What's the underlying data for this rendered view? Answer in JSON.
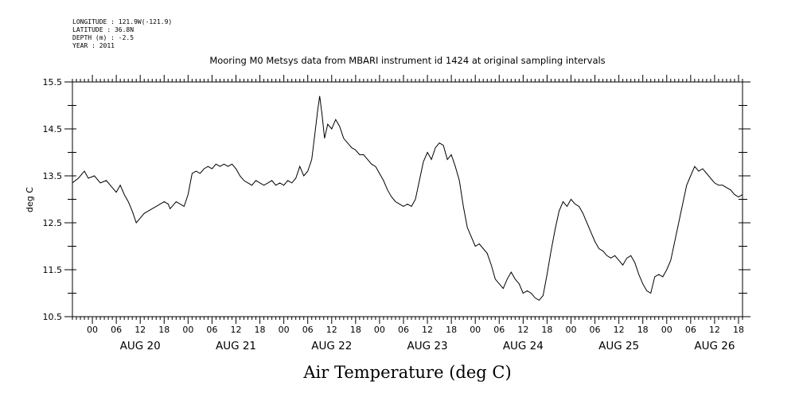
{
  "header": {
    "meta_lines": [
      "LONGITUDE : 121.9W(-121.9)",
      "LATITUDE : 36.8N",
      "DEPTH (m) : -2.5",
      "YEAR : 2011"
    ],
    "title": "Mooring M0 Metsys data from MBARI instrument id 1424 at original sampling intervals"
  },
  "chart_data": {
    "type": "line",
    "title": "Mooring M0 Metsys data from MBARI instrument id 1424 at original sampling intervals",
    "xlabel": "Air Temperature (deg C)",
    "ylabel": "deg C",
    "x_unit": "hours since AUG 20 00:00 (2011)",
    "xlim": [
      -5,
      163
    ],
    "ylim": [
      10.5,
      15.5
    ],
    "y_ticks": [
      "15.5",
      "14.5",
      "13.5",
      "12.5",
      "11.5",
      "10.5"
    ],
    "x_hour_labels": [
      "00",
      "06",
      "12",
      "18"
    ],
    "x_day_labels": [
      "AUG 20",
      "AUG 21",
      "AUG 22",
      "AUG 23",
      "AUG 24",
      "AUG 25",
      "AUG 26"
    ],
    "grid": false,
    "series": [
      {
        "name": "",
        "points": [
          [
            -5,
            13.35
          ],
          [
            -3.5,
            13.45
          ],
          [
            -2,
            13.6
          ],
          [
            -1,
            13.45
          ],
          [
            0.5,
            13.5
          ],
          [
            2,
            13.35
          ],
          [
            3.5,
            13.4
          ],
          [
            5,
            13.25
          ],
          [
            6,
            13.15
          ],
          [
            7,
            13.3
          ],
          [
            8,
            13.1
          ],
          [
            9,
            12.95
          ],
          [
            10,
            12.75
          ],
          [
            11,
            12.5
          ],
          [
            12,
            12.6
          ],
          [
            13,
            12.7
          ],
          [
            14,
            12.75
          ],
          [
            15,
            12.8
          ],
          [
            16,
            12.85
          ],
          [
            17,
            12.9
          ],
          [
            18,
            12.95
          ],
          [
            19,
            12.9
          ],
          [
            19.5,
            12.8
          ],
          [
            20,
            12.85
          ],
          [
            21,
            12.95
          ],
          [
            22,
            12.9
          ],
          [
            23,
            12.85
          ],
          [
            24,
            13.1
          ],
          [
            25,
            13.55
          ],
          [
            26,
            13.6
          ],
          [
            27,
            13.55
          ],
          [
            28,
            13.65
          ],
          [
            29,
            13.7
          ],
          [
            30,
            13.65
          ],
          [
            31,
            13.75
          ],
          [
            32,
            13.7
          ],
          [
            33,
            13.75
          ],
          [
            34,
            13.7
          ],
          [
            35,
            13.75
          ],
          [
            36,
            13.65
          ],
          [
            37,
            13.5
          ],
          [
            38,
            13.4
          ],
          [
            39,
            13.35
          ],
          [
            40,
            13.3
          ],
          [
            41,
            13.4
          ],
          [
            42,
            13.35
          ],
          [
            43,
            13.3
          ],
          [
            44,
            13.35
          ],
          [
            45,
            13.4
          ],
          [
            46,
            13.3
          ],
          [
            47,
            13.35
          ],
          [
            48,
            13.3
          ],
          [
            49,
            13.4
          ],
          [
            50,
            13.35
          ],
          [
            51,
            13.45
          ],
          [
            52,
            13.7
          ],
          [
            53,
            13.5
          ],
          [
            54,
            13.6
          ],
          [
            55,
            13.85
          ],
          [
            55.8,
            14.4
          ],
          [
            56.5,
            14.9
          ],
          [
            57,
            15.2
          ],
          [
            57.6,
            14.8
          ],
          [
            58.2,
            14.3
          ],
          [
            59,
            14.6
          ],
          [
            60,
            14.5
          ],
          [
            61,
            14.7
          ],
          [
            62,
            14.55
          ],
          [
            63,
            14.3
          ],
          [
            64,
            14.2
          ],
          [
            65,
            14.1
          ],
          [
            66,
            14.05
          ],
          [
            67,
            13.95
          ],
          [
            68,
            13.95
          ],
          [
            69,
            13.85
          ],
          [
            70,
            13.75
          ],
          [
            71,
            13.7
          ],
          [
            72,
            13.55
          ],
          [
            73,
            13.4
          ],
          [
            74,
            13.2
          ],
          [
            75,
            13.05
          ],
          [
            76,
            12.95
          ],
          [
            77,
            12.9
          ],
          [
            78,
            12.85
          ],
          [
            79,
            12.9
          ],
          [
            80,
            12.85
          ],
          [
            81,
            13.0
          ],
          [
            82,
            13.4
          ],
          [
            83,
            13.8
          ],
          [
            84,
            14.0
          ],
          [
            85,
            13.85
          ],
          [
            86,
            14.1
          ],
          [
            87,
            14.2
          ],
          [
            88,
            14.15
          ],
          [
            89,
            13.85
          ],
          [
            90,
            13.95
          ],
          [
            91,
            13.7
          ],
          [
            92,
            13.4
          ],
          [
            93,
            12.85
          ],
          [
            94,
            12.4
          ],
          [
            95,
            12.2
          ],
          [
            96,
            12.0
          ],
          [
            97,
            12.05
          ],
          [
            98,
            11.95
          ],
          [
            99,
            11.85
          ],
          [
            100,
            11.6
          ],
          [
            101,
            11.3
          ],
          [
            102,
            11.2
          ],
          [
            103,
            11.1
          ],
          [
            104,
            11.3
          ],
          [
            105,
            11.45
          ],
          [
            106,
            11.3
          ],
          [
            107,
            11.2
          ],
          [
            108,
            11.0
          ],
          [
            109,
            11.05
          ],
          [
            110,
            11.0
          ],
          [
            111,
            10.9
          ],
          [
            112,
            10.85
          ],
          [
            113,
            10.95
          ],
          [
            114,
            11.4
          ],
          [
            115,
            11.9
          ],
          [
            116,
            12.35
          ],
          [
            117,
            12.75
          ],
          [
            118,
            12.95
          ],
          [
            119,
            12.85
          ],
          [
            120,
            13.0
          ],
          [
            121,
            12.9
          ],
          [
            122,
            12.85
          ],
          [
            123,
            12.7
          ],
          [
            124,
            12.5
          ],
          [
            125,
            12.3
          ],
          [
            126,
            12.1
          ],
          [
            127,
            11.95
          ],
          [
            128,
            11.9
          ],
          [
            129,
            11.8
          ],
          [
            130,
            11.75
          ],
          [
            131,
            11.8
          ],
          [
            132,
            11.7
          ],
          [
            133,
            11.6
          ],
          [
            134,
            11.75
          ],
          [
            135,
            11.8
          ],
          [
            136,
            11.65
          ],
          [
            137,
            11.4
          ],
          [
            138,
            11.2
          ],
          [
            139,
            11.05
          ],
          [
            140,
            11.0
          ],
          [
            141,
            11.35
          ],
          [
            142,
            11.4
          ],
          [
            143,
            11.35
          ],
          [
            144,
            11.5
          ],
          [
            145,
            11.7
          ],
          [
            146,
            12.1
          ],
          [
            147,
            12.5
          ],
          [
            148,
            12.9
          ],
          [
            149,
            13.3
          ],
          [
            150,
            13.5
          ],
          [
            151,
            13.7
          ],
          [
            152,
            13.6
          ],
          [
            153,
            13.65
          ],
          [
            154,
            13.55
          ],
          [
            155,
            13.45
          ],
          [
            156,
            13.35
          ],
          [
            157,
            13.3
          ],
          [
            158,
            13.3
          ],
          [
            159,
            13.25
          ],
          [
            160,
            13.2
          ],
          [
            161,
            13.1
          ],
          [
            162,
            13.05
          ],
          [
            163,
            13.1
          ]
        ]
      }
    ]
  }
}
